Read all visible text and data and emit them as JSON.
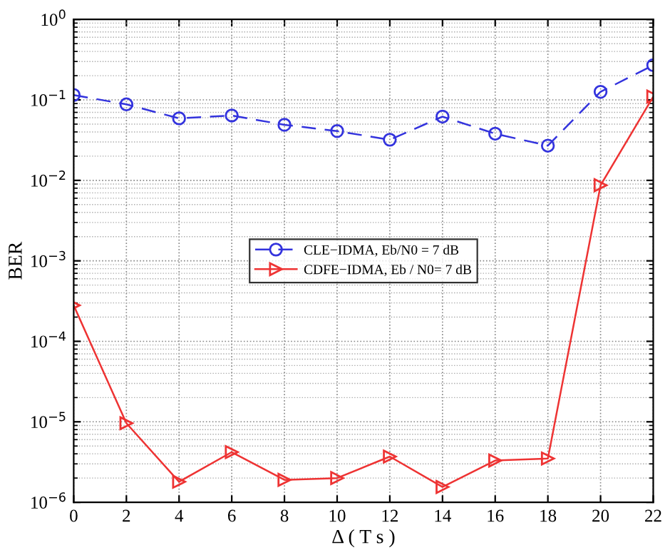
{
  "chart_data": {
    "type": "line",
    "xlabel": "Δ ( T s )",
    "ylabel": "BER",
    "x": [
      0,
      2,
      4,
      6,
      8,
      10,
      12,
      14,
      16,
      18,
      20,
      22
    ],
    "series": [
      {
        "name": "CLE−IDMA, Eb/N0 = 7 dB",
        "color": "#3333dd",
        "marker": "circle",
        "line_style": "dashed",
        "values": [
          0.115,
          0.088,
          0.059,
          0.064,
          0.049,
          0.041,
          0.032,
          0.062,
          0.038,
          0.027,
          0.126,
          0.27
        ]
      },
      {
        "name": "CDFE−IDMA, Eb / N0= 7 dB",
        "color": "#ee3333",
        "marker": "triangle",
        "line_style": "solid",
        "values": [
          0.00028,
          9.6e-06,
          1.8e-06,
          4.2e-06,
          1.9e-06,
          2e-06,
          3.7e-06,
          1.55e-06,
          3.3e-06,
          3.5e-06,
          0.0087,
          0.11
        ]
      }
    ],
    "log": "y",
    "xlim": [
      0,
      22
    ],
    "xticks": [
      0,
      2,
      4,
      6,
      8,
      10,
      12,
      14,
      16,
      18,
      20,
      22
    ],
    "ylim": [
      1e-06,
      1
    ],
    "yticks": [
      {
        "value": 1e-06,
        "label": "10$^{−6}$"
      },
      {
        "value": 1e-05,
        "label": "10$^{−5}$"
      },
      {
        "value": 0.0001,
        "label": "10$^{−4}$"
      },
      {
        "value": 0.001,
        "label": "10$^{−3}$"
      },
      {
        "value": 0.01,
        "label": "10$^{−2}$"
      },
      {
        "value": 0.1,
        "label": "10$^{−1}$"
      },
      {
        "value": 1,
        "label": "10$^{0}$"
      }
    ],
    "grid": true,
    "legend": "center"
  }
}
